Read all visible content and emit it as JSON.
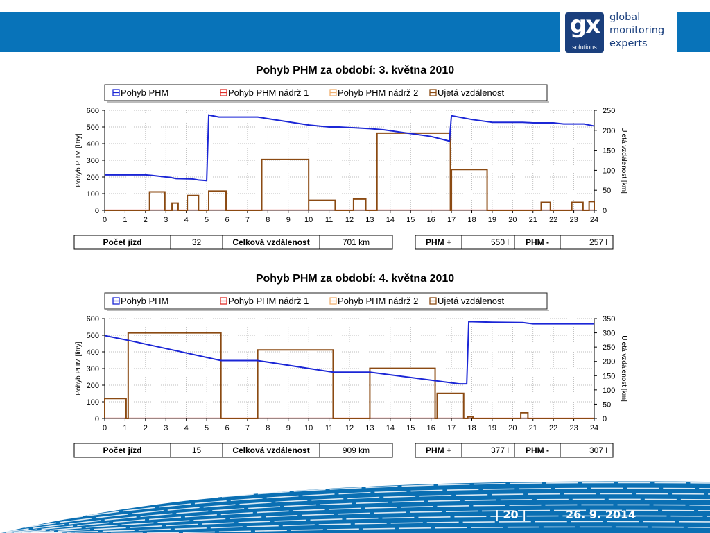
{
  "header": {
    "logo_mark": "gx",
    "logo_sub": "solutions",
    "tagline": [
      "global",
      "monitoring",
      "experts"
    ],
    "bar_color": "#0873b9",
    "logo_color": "#1a3f7d"
  },
  "footer": {
    "page": "| 20 |",
    "date": "26. 9. 2014",
    "color": "#0a6fb3"
  },
  "chart_data": [
    {
      "type": "line",
      "title": "Pohyb PHM za období: 3. května 2010",
      "legend": [
        "Pohyb PHM",
        "Pohyb PHM nádrž 1",
        "Pohyb PHM nádrž 2",
        "Ujetá vzdálenost"
      ],
      "legend_colors": [
        "#1b26d6",
        "#e0302a",
        "#f0b070",
        "#8b4a12"
      ],
      "ylabel": "Pohyb PHM [litry]",
      "y2label": "Ujetá vzdálenost [km]",
      "xlim": [
        0,
        24
      ],
      "xticks": [
        0,
        1,
        2,
        3,
        4,
        5,
        6,
        7,
        8,
        9,
        10,
        11,
        12,
        13,
        14,
        15,
        16,
        17,
        18,
        19,
        20,
        21,
        22,
        23,
        24
      ],
      "ylim": [
        0,
        600
      ],
      "yticks": [
        0,
        100,
        200,
        300,
        400,
        500,
        600
      ],
      "y2lim": [
        0,
        250
      ],
      "y2ticks": [
        0,
        50,
        100,
        150,
        200,
        250
      ],
      "fuel": [
        [
          0,
          213
        ],
        [
          2,
          213
        ],
        [
          2.3,
          210
        ],
        [
          3,
          200
        ],
        [
          3.2,
          198
        ],
        [
          3.5,
          190
        ],
        [
          4.3,
          188
        ],
        [
          4.6,
          182
        ],
        [
          5,
          178
        ],
        [
          5.1,
          572
        ],
        [
          5.6,
          560
        ],
        [
          7.5,
          560
        ],
        [
          8,
          550
        ],
        [
          10,
          512
        ],
        [
          11,
          500
        ],
        [
          11.5,
          500
        ],
        [
          13,
          490
        ],
        [
          13.7,
          483
        ],
        [
          16,
          443
        ],
        [
          16.9,
          415
        ],
        [
          17,
          568
        ],
        [
          18,
          545
        ],
        [
          19,
          528
        ],
        [
          20.5,
          528
        ],
        [
          21,
          525
        ],
        [
          22,
          525
        ],
        [
          22.5,
          518
        ],
        [
          23.5,
          518
        ],
        [
          24,
          506
        ]
      ],
      "distance_segments": [
        [
          2.2,
          2.95,
          46
        ],
        [
          3.3,
          3.6,
          18
        ],
        [
          4.05,
          4.6,
          37
        ],
        [
          5.1,
          5.95,
          48
        ],
        [
          7.7,
          10,
          127
        ],
        [
          10,
          11.3,
          25
        ],
        [
          12.2,
          12.8,
          28
        ],
        [
          13.35,
          16.95,
          193
        ],
        [
          17,
          18.75,
          102
        ],
        [
          21.4,
          21.85,
          20
        ],
        [
          22.9,
          23.45,
          20
        ],
        [
          23.75,
          24,
          22
        ]
      ],
      "summary": {
        "trips_label": "Počet jízd",
        "trips": "32",
        "distance_label": "Celková vzdálenost",
        "distance": "701 km",
        "fuel_in_label": "PHM +",
        "fuel_in": "550 l",
        "fuel_out_label": "PHM -",
        "fuel_out": "257 l"
      }
    },
    {
      "type": "line",
      "title": "Pohyb PHM za období: 4. května 2010",
      "legend": [
        "Pohyb PHM",
        "Pohyb PHM nádrž 1",
        "Pohyb PHM nádrž 2",
        "Ujetá vzdálenost"
      ],
      "legend_colors": [
        "#1b26d6",
        "#e0302a",
        "#f0b070",
        "#8b4a12"
      ],
      "ylabel": "Pohyb PHM [litry]",
      "y2label": "Ujetá vzdálenost [km]",
      "xlim": [
        0,
        24
      ],
      "xticks": [
        0,
        1,
        2,
        3,
        4,
        5,
        6,
        7,
        8,
        9,
        10,
        11,
        12,
        13,
        14,
        15,
        16,
        17,
        18,
        19,
        20,
        21,
        22,
        23,
        24
      ],
      "ylim": [
        0,
        600
      ],
      "yticks": [
        0,
        100,
        200,
        300,
        400,
        500,
        600
      ],
      "y2lim": [
        0,
        350
      ],
      "y2ticks": [
        0,
        50,
        100,
        150,
        200,
        250,
        300,
        350
      ],
      "fuel": [
        [
          0,
          498
        ],
        [
          1.2,
          468
        ],
        [
          5.7,
          348
        ],
        [
          7.5,
          348
        ],
        [
          11.2,
          278
        ],
        [
          13,
          278
        ],
        [
          17.4,
          208
        ],
        [
          17.75,
          208
        ],
        [
          17.85,
          582
        ],
        [
          19,
          578
        ],
        [
          20.5,
          576
        ],
        [
          21,
          568
        ],
        [
          24,
          568
        ]
      ],
      "distance_segments": [
        [
          0,
          1.05,
          70
        ],
        [
          1.15,
          5.7,
          300
        ],
        [
          7.5,
          11.2,
          240
        ],
        [
          13,
          16.2,
          176
        ],
        [
          16.3,
          17.6,
          88
        ],
        [
          17.8,
          18.05,
          6
        ],
        [
          20.4,
          20.75,
          20
        ]
      ],
      "summary": {
        "trips_label": "Počet jízd",
        "trips": "15",
        "distance_label": "Celková vzdálenost",
        "distance": "909 km",
        "fuel_in_label": "PHM +",
        "fuel_in": "377 l",
        "fuel_out_label": "PHM -",
        "fuel_out": "307 l"
      }
    }
  ]
}
